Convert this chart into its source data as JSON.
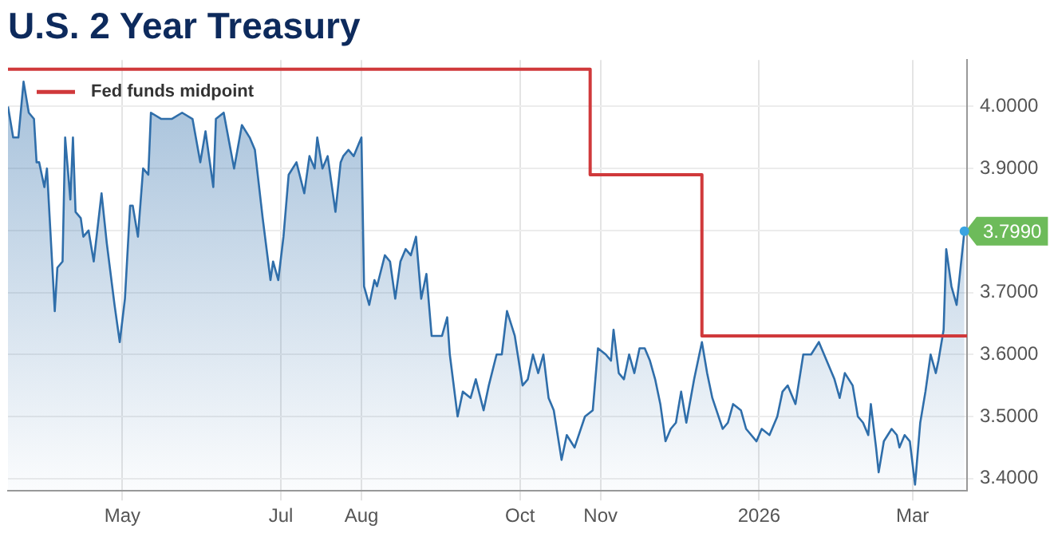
{
  "chart_data": {
    "type": "area",
    "title": "U.S. 2 Year Treasury",
    "xlim": [
      "2025-03-18",
      "2026-03-22"
    ],
    "xticks": [
      {
        "value": "2025-05-01",
        "label": "May"
      },
      {
        "value": "2025-07-01",
        "label": "Jul"
      },
      {
        "value": "2025-08-01",
        "label": "Aug"
      },
      {
        "value": "2025-10-01",
        "label": "Oct"
      },
      {
        "value": "2025-11-01",
        "label": "Nov"
      },
      {
        "value": "2026-01-01",
        "label": "2026"
      },
      {
        "value": "2026-03-01",
        "label": "Mar"
      }
    ],
    "ylim": [
      3.38,
      4.075
    ],
    "yticks": [
      {
        "value": 3.4,
        "label": "3.4000"
      },
      {
        "value": 3.5,
        "label": "3.5000"
      },
      {
        "value": 3.6,
        "label": "3.6000"
      },
      {
        "value": 3.7,
        "label": "3.7000"
      },
      {
        "value": 3.8,
        "label": null
      },
      {
        "value": 3.9,
        "label": "3.9000"
      },
      {
        "value": 4.0,
        "label": "4.0000"
      }
    ],
    "grid": true,
    "legend": "top left",
    "marker": "none",
    "annotations": [
      {
        "text": "3.7990",
        "x": "2026-03-21",
        "y": 3.799
      }
    ],
    "series": [
      {
        "color": "#2f6eaa",
        "x": [
          "2025-03-18",
          "2025-03-20",
          "2025-03-22",
          "2025-03-24",
          "2025-03-26",
          "2025-03-28",
          "2025-03-29",
          "2025-03-30",
          "2025-04-01",
          "2025-04-02",
          "2025-04-05",
          "2025-04-06",
          "2025-04-08",
          "2025-04-09",
          "2025-04-11",
          "2025-04-12",
          "2025-04-13",
          "2025-04-15",
          "2025-04-16",
          "2025-04-18",
          "2025-04-20",
          "2025-04-23",
          "2025-04-25",
          "2025-04-28",
          "2025-04-30",
          "2025-05-02",
          "2025-05-04",
          "2025-05-05",
          "2025-05-07",
          "2025-05-09",
          "2025-05-11",
          "2025-05-12",
          "2025-05-16",
          "2025-05-20",
          "2025-05-24",
          "2025-05-28",
          "2025-05-31",
          "2025-06-02",
          "2025-06-05",
          "2025-06-06",
          "2025-06-09",
          "2025-06-13",
          "2025-06-16",
          "2025-06-19",
          "2025-06-21",
          "2025-06-24",
          "2025-06-27",
          "2025-06-28",
          "2025-06-30",
          "2025-07-02",
          "2025-07-04",
          "2025-07-07",
          "2025-07-10",
          "2025-07-12",
          "2025-07-14",
          "2025-07-15",
          "2025-07-17",
          "2025-07-19",
          "2025-07-22",
          "2025-07-24",
          "2025-07-25",
          "2025-07-27",
          "2025-07-29",
          "2025-07-31",
          "2025-08-01",
          "2025-08-02",
          "2025-08-04",
          "2025-08-06",
          "2025-08-07",
          "2025-08-10",
          "2025-08-12",
          "2025-08-14",
          "2025-08-16",
          "2025-08-18",
          "2025-08-20",
          "2025-08-22",
          "2025-08-24",
          "2025-08-26",
          "2025-08-28",
          "2025-08-30",
          "2025-09-01",
          "2025-09-03",
          "2025-09-04",
          "2025-09-07",
          "2025-09-09",
          "2025-09-12",
          "2025-09-14",
          "2025-09-17",
          "2025-09-19",
          "2025-09-22",
          "2025-09-24",
          "2025-09-26",
          "2025-09-29",
          "2025-10-02",
          "2025-10-04",
          "2025-10-06",
          "2025-10-08",
          "2025-10-10",
          "2025-10-12",
          "2025-10-14",
          "2025-10-17",
          "2025-10-19",
          "2025-10-22",
          "2025-10-26",
          "2025-10-29",
          "2025-10-31",
          "2025-11-03",
          "2025-11-05",
          "2025-11-06",
          "2025-11-08",
          "2025-11-10",
          "2025-11-12",
          "2025-11-14",
          "2025-11-16",
          "2025-11-18",
          "2025-11-20",
          "2025-11-22",
          "2025-11-24",
          "2025-11-26",
          "2025-11-28",
          "2025-11-30",
          "2025-12-02",
          "2025-12-04",
          "2025-12-07",
          "2025-12-10",
          "2025-12-12",
          "2025-12-14",
          "2025-12-18",
          "2025-12-20",
          "2025-12-22",
          "2025-12-25",
          "2025-12-27",
          "2025-12-31",
          "2026-01-02",
          "2026-01-05",
          "2026-01-08",
          "2026-01-10",
          "2026-01-12",
          "2026-01-15",
          "2026-01-18",
          "2026-01-21",
          "2026-01-24",
          "2026-01-26",
          "2026-01-28",
          "2026-01-30",
          "2026-02-01",
          "2026-02-03",
          "2026-02-06",
          "2026-02-08",
          "2026-02-10",
          "2026-02-12",
          "2026-02-13",
          "2026-02-15",
          "2026-02-16",
          "2026-02-18",
          "2026-02-21",
          "2026-02-23",
          "2026-02-24",
          "2026-02-26",
          "2026-02-28",
          "2026-03-02",
          "2026-03-04",
          "2026-03-06",
          "2026-03-08",
          "2026-03-10",
          "2026-03-11",
          "2026-03-13",
          "2026-03-14",
          "2026-03-16",
          "2026-03-18",
          "2026-03-21"
        ],
        "values": [
          4.0,
          3.95,
          3.95,
          4.04,
          3.99,
          3.98,
          3.91,
          3.91,
          3.87,
          3.9,
          3.67,
          3.74,
          3.75,
          3.95,
          3.85,
          3.95,
          3.83,
          3.82,
          3.79,
          3.8,
          3.75,
          3.86,
          3.78,
          3.68,
          3.62,
          3.69,
          3.84,
          3.84,
          3.79,
          3.9,
          3.89,
          3.99,
          3.98,
          3.98,
          3.99,
          3.98,
          3.91,
          3.96,
          3.87,
          3.98,
          3.99,
          3.9,
          3.97,
          3.95,
          3.93,
          3.82,
          3.72,
          3.75,
          3.72,
          3.79,
          3.89,
          3.91,
          3.86,
          3.92,
          3.9,
          3.95,
          3.9,
          3.92,
          3.83,
          3.91,
          3.92,
          3.93,
          3.92,
          3.94,
          3.95,
          3.71,
          3.68,
          3.72,
          3.71,
          3.76,
          3.75,
          3.69,
          3.75,
          3.77,
          3.76,
          3.79,
          3.69,
          3.73,
          3.63,
          3.63,
          3.63,
          3.66,
          3.6,
          3.5,
          3.54,
          3.53,
          3.56,
          3.51,
          3.55,
          3.6,
          3.6,
          3.67,
          3.63,
          3.55,
          3.56,
          3.6,
          3.57,
          3.6,
          3.53,
          3.51,
          3.43,
          3.47,
          3.45,
          3.5,
          3.51,
          3.61,
          3.6,
          3.59,
          3.64,
          3.57,
          3.56,
          3.6,
          3.57,
          3.61,
          3.61,
          3.59,
          3.56,
          3.52,
          3.46,
          3.48,
          3.49,
          3.54,
          3.49,
          3.56,
          3.62,
          3.57,
          3.53,
          3.48,
          3.49,
          3.52,
          3.51,
          3.48,
          3.46,
          3.48,
          3.47,
          3.5,
          3.54,
          3.55,
          3.52,
          3.6,
          3.6,
          3.62,
          3.6,
          3.58,
          3.56,
          3.53,
          3.57,
          3.55,
          3.5,
          3.49,
          3.47,
          3.52,
          3.45,
          3.41,
          3.46,
          3.48,
          3.47,
          3.45,
          3.47,
          3.46,
          3.39,
          3.49,
          3.54,
          3.6,
          3.57,
          3.59,
          3.64,
          3.77,
          3.71,
          3.68,
          3.799
        ]
      },
      {
        "type": "step",
        "name": "Fed funds midpoint",
        "color": "#d0393b",
        "x": [
          "2025-03-18",
          "2025-10-28",
          "2025-12-10",
          "2026-03-22"
        ],
        "values": [
          4.06,
          3.89,
          3.63,
          3.63
        ]
      }
    ]
  }
}
